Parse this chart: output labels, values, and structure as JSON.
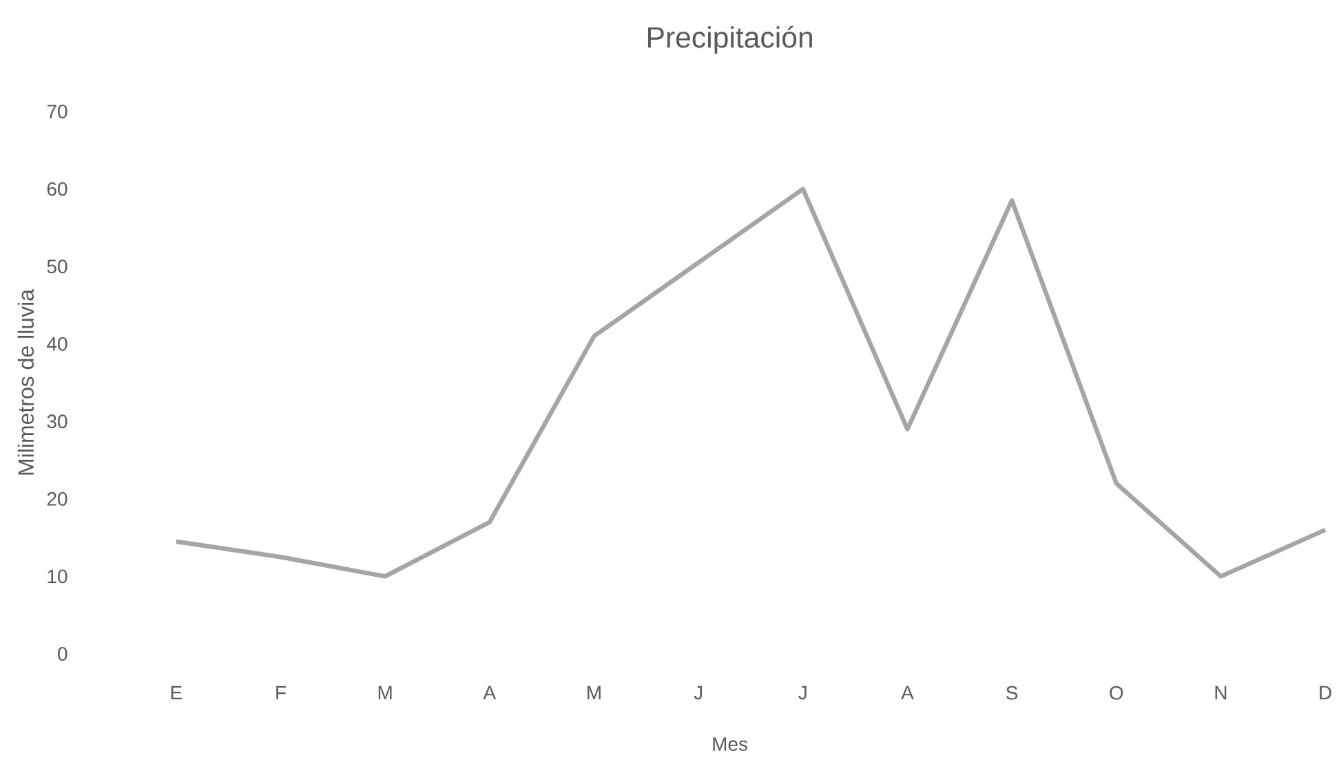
{
  "chart_data": {
    "type": "line",
    "title": "Precipitación",
    "xlabel": "Mes",
    "ylabel": "Milimetros de lluvia",
    "categories": [
      "E",
      "F",
      "M",
      "A",
      "M",
      "J",
      "J",
      "A",
      "S",
      "O",
      "N",
      "D"
    ],
    "series": [
      {
        "color": "#a5a5a5",
        "values": [
          14.5,
          12.5,
          10,
          17,
          41,
          50.5,
          60,
          29,
          58.5,
          22,
          10,
          16
        ]
      }
    ],
    "ylim": [
      0,
      70
    ],
    "yticks": [
      0,
      10,
      20,
      30,
      40,
      50,
      60,
      70
    ],
    "grid": false,
    "marker": "none",
    "line_style": "solid"
  }
}
